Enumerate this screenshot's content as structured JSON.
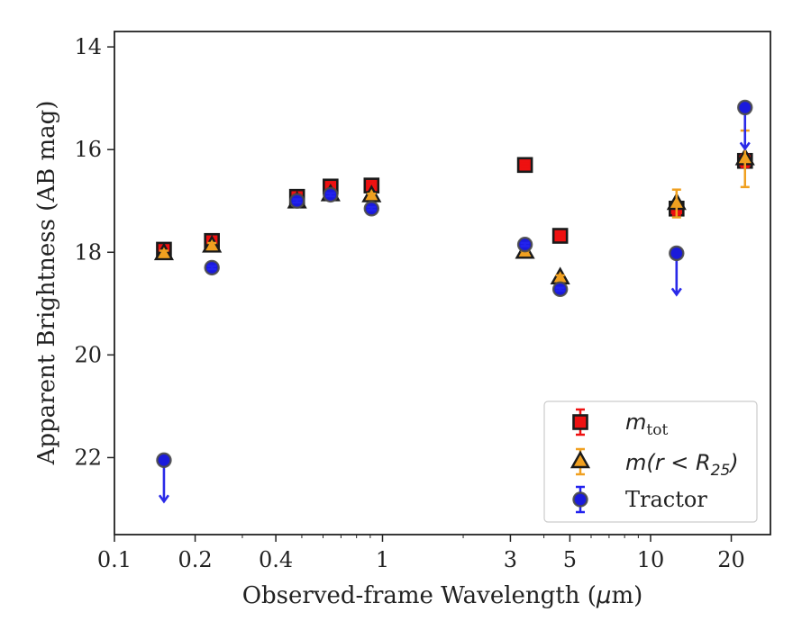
{
  "chart_data": {
    "type": "scatter",
    "xlabel_main": "Observed-frame Wavelength (",
    "xlabel_mu": "μ",
    "xlabel_end": "m)",
    "ylabel": "Apparent Brightness (AB mag)",
    "x_scale": "log",
    "xlim": [
      0.1,
      28
    ],
    "ylim": [
      23.5,
      13.7
    ],
    "y_inverted": true,
    "x_ticks": [
      {
        "value": 0.1,
        "label": "0.1"
      },
      {
        "value": 0.2,
        "label": "0.2"
      },
      {
        "value": 0.4,
        "label": "0.4"
      },
      {
        "value": 1,
        "label": "1"
      },
      {
        "value": 3,
        "label": "3"
      },
      {
        "value": 5,
        "label": "5"
      },
      {
        "value": 10,
        "label": "10"
      },
      {
        "value": 20,
        "label": "20"
      }
    ],
    "y_ticks": [
      14,
      16,
      18,
      20,
      22
    ],
    "grid": false,
    "legend_position": "lower-right",
    "colors": {
      "m_tot": "#ee1111",
      "m_r25": "#f0a020",
      "tractor": "#2222ee",
      "tractor_marker": "#1a1adc",
      "tractor_edge": "#4a4a4a",
      "tractor_arrow": "#2a2ae8",
      "edge": "#1a1a1a"
    },
    "series": [
      {
        "key": "m_tot",
        "legend_main": "m",
        "legend_sub": "tot",
        "marker": "square",
        "points": [
          {
            "x": 0.153,
            "y": 17.95,
            "err": 0.08
          },
          {
            "x": 0.231,
            "y": 17.78,
            "err": 0.08
          },
          {
            "x": 0.48,
            "y": 16.92,
            "err": 0.05
          },
          {
            "x": 0.64,
            "y": 16.72,
            "err": 0.04
          },
          {
            "x": 0.91,
            "y": 16.7,
            "err": 0.04
          },
          {
            "x": 3.4,
            "y": 16.3,
            "err": 0.03
          },
          {
            "x": 4.6,
            "y": 17.68,
            "err": 0.03
          },
          {
            "x": 12.5,
            "y": 17.15,
            "err": 0.12
          },
          {
            "x": 22.5,
            "y": 16.22,
            "err": 0.12
          }
        ]
      },
      {
        "key": "m_r25",
        "legend_main": "m(r < R",
        "legend_sub": "25",
        "legend_end": ")",
        "marker": "triangle",
        "points": [
          {
            "x": 0.153,
            "y": 18.03,
            "err": 0.06
          },
          {
            "x": 0.231,
            "y": 17.88,
            "err": 0.06
          },
          {
            "x": 0.48,
            "y": 17.02,
            "err": 0.04
          },
          {
            "x": 0.64,
            "y": 16.88,
            "err": 0.04
          },
          {
            "x": 0.91,
            "y": 16.9,
            "err": 0.04
          },
          {
            "x": 3.4,
            "y": 18.0,
            "err": 0.03
          },
          {
            "x": 4.6,
            "y": 18.5,
            "err": 0.05
          },
          {
            "x": 12.5,
            "y": 17.05,
            "err": 0.27
          },
          {
            "x": 22.5,
            "y": 16.18,
            "err": 0.55
          }
        ]
      },
      {
        "key": "tractor",
        "legend_main": "Tractor",
        "marker": "circle",
        "points": [
          {
            "x": 0.153,
            "y": 22.05,
            "upper_limit": true
          },
          {
            "x": 0.231,
            "y": 18.3,
            "err": 0.03
          },
          {
            "x": 0.48,
            "y": 17.0,
            "err": 0.03
          },
          {
            "x": 0.64,
            "y": 16.88,
            "err": 0.03
          },
          {
            "x": 0.91,
            "y": 17.15,
            "err": 0.03
          },
          {
            "x": 3.4,
            "y": 17.85,
            "err": 0.03
          },
          {
            "x": 4.6,
            "y": 18.72,
            "err": 0.03
          },
          {
            "x": 12.5,
            "y": 18.02,
            "upper_limit": true
          },
          {
            "x": 22.5,
            "y": 15.18,
            "upper_limit": true
          }
        ]
      }
    ]
  }
}
